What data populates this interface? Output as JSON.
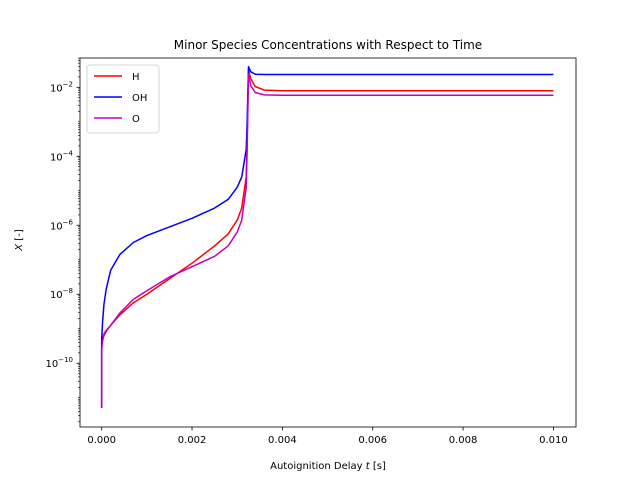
{
  "chart_data": {
    "type": "line",
    "title": "Minor Species Concentrations with Respect to Time",
    "xlabel_prefix": "Autoignition Delay ",
    "xlabel_var": "t",
    "xlabel_suffix": " [s]",
    "ylabel_var": "X",
    "ylabel_suffix": " [-]",
    "xlim": [
      -0.00048,
      0.0105
    ],
    "ylim_log10": [
      -11.85,
      -1.15
    ],
    "y_scale": "log",
    "grid": false,
    "legend_position": "top-left",
    "x_ticks": [
      {
        "value": 0.0,
        "label": "0.000"
      },
      {
        "value": 0.002,
        "label": "0.002"
      },
      {
        "value": 0.004,
        "label": "0.004"
      },
      {
        "value": 0.006,
        "label": "0.006"
      },
      {
        "value": 0.008,
        "label": "0.008"
      },
      {
        "value": 0.01,
        "label": "0.010"
      }
    ],
    "y_ticks": [
      {
        "exp": -10,
        "base": "10",
        "sup": "−10"
      },
      {
        "exp": -8,
        "base": "10",
        "sup": "−8"
      },
      {
        "exp": -6,
        "base": "10",
        "sup": "−6"
      },
      {
        "exp": -4,
        "base": "10",
        "sup": "−4"
      },
      {
        "exp": -2,
        "base": "10",
        "sup": "−2"
      }
    ],
    "series": [
      {
        "name": "H",
        "color": "#ff0000",
        "x": [
          0.0,
          0.0,
          2e-05,
          5e-05,
          0.0001,
          0.0002,
          0.0004,
          0.0007,
          0.001,
          0.0015,
          0.002,
          0.0025,
          0.0028,
          0.003,
          0.0031,
          0.0032,
          0.00322,
          0.00325,
          0.0033,
          0.0034,
          0.0036,
          0.004,
          0.006,
          0.008,
          0.01
        ],
        "y_log10": [
          -11.3,
          -9.5,
          -9.3,
          -9.15,
          -9.05,
          -8.9,
          -8.6,
          -8.25,
          -8.0,
          -7.55,
          -7.1,
          -6.6,
          -6.25,
          -5.85,
          -5.5,
          -4.6,
          -3.5,
          -1.5,
          -1.75,
          -1.98,
          -2.08,
          -2.1,
          -2.1,
          -2.1,
          -2.1
        ]
      },
      {
        "name": "OH",
        "color": "#0000ff",
        "x": [
          0.0,
          0.0,
          2e-05,
          5e-05,
          0.0001,
          0.0002,
          0.0004,
          0.0007,
          0.001,
          0.0015,
          0.002,
          0.0025,
          0.0028,
          0.003,
          0.0031,
          0.0032,
          0.00322,
          0.00325,
          0.0033,
          0.0034,
          0.0036,
          0.004,
          0.006,
          0.008,
          0.01
        ],
        "y_log10": [
          -11.3,
          -9.3,
          -8.8,
          -8.3,
          -7.85,
          -7.3,
          -6.85,
          -6.5,
          -6.3,
          -6.05,
          -5.8,
          -5.5,
          -5.25,
          -4.9,
          -4.6,
          -3.8,
          -3.0,
          -1.4,
          -1.55,
          -1.62,
          -1.63,
          -1.63,
          -1.63,
          -1.63,
          -1.63
        ]
      },
      {
        "name": "O",
        "color": "#bf00bf",
        "x": [
          0.0,
          0.0,
          2e-05,
          5e-05,
          0.0001,
          0.0002,
          0.0004,
          0.0007,
          0.001,
          0.0015,
          0.002,
          0.0025,
          0.0028,
          0.003,
          0.0031,
          0.0032,
          0.00322,
          0.00325,
          0.0033,
          0.0034,
          0.0036,
          0.004,
          0.006,
          0.008,
          0.01
        ],
        "y_log10": [
          -11.3,
          -9.6,
          -9.35,
          -9.2,
          -9.08,
          -8.9,
          -8.55,
          -8.15,
          -7.9,
          -7.5,
          -7.2,
          -6.9,
          -6.6,
          -6.2,
          -5.85,
          -4.9,
          -3.8,
          -1.6,
          -1.95,
          -2.15,
          -2.22,
          -2.23,
          -2.23,
          -2.23,
          -2.23
        ]
      }
    ]
  }
}
